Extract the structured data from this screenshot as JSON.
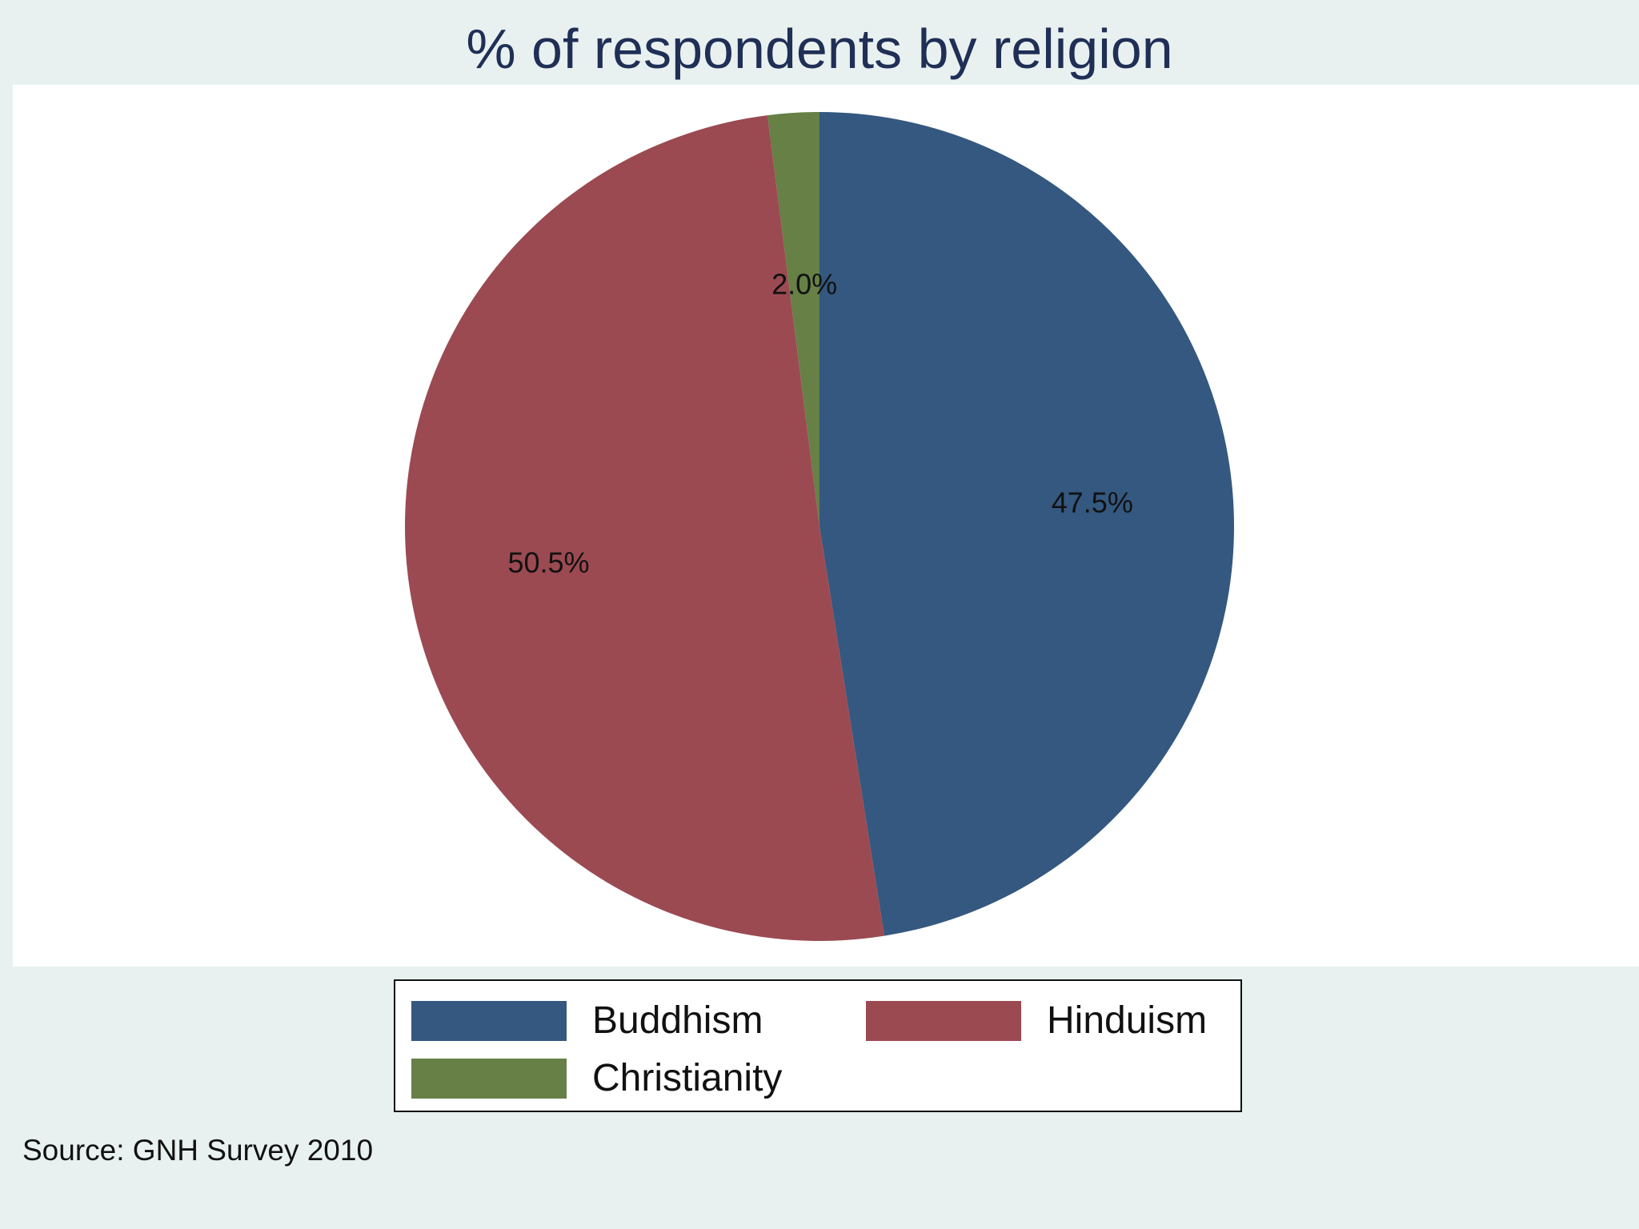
{
  "chart_data": {
    "type": "pie",
    "title": "% of respondents by religion",
    "categories": [
      "Buddhism",
      "Hinduism",
      "Christianity"
    ],
    "values": [
      47.5,
      50.5,
      2.0
    ],
    "data_labels": [
      "47.5%",
      "50.5%",
      "2.0%"
    ],
    "colors": [
      "#34587f",
      "#9b4a52",
      "#668046"
    ],
    "start_angle": "12 o'clock",
    "direction": "clockwise",
    "legend": {
      "placement": "bottom",
      "entries": [
        "Buddhism",
        "Hinduism",
        "Christianity"
      ]
    },
    "note": "Source: GNH Survey 2010"
  }
}
